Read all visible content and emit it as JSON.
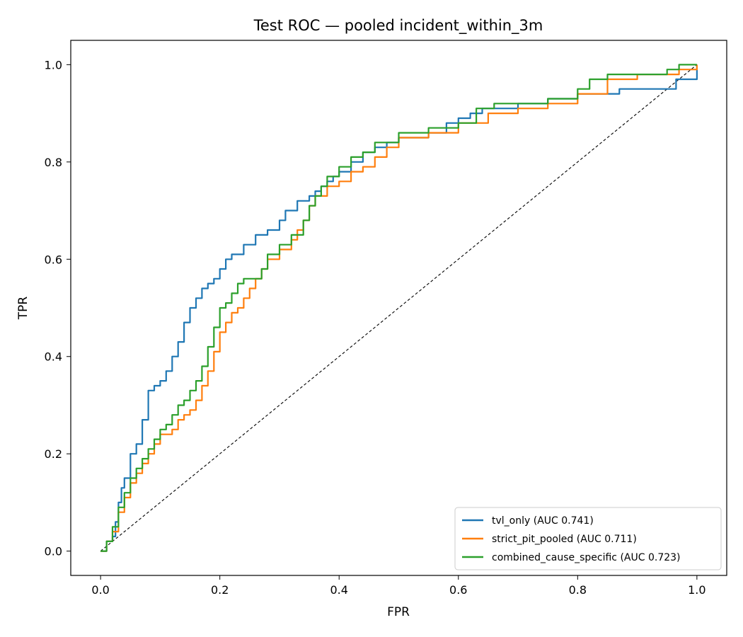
{
  "chart_data": {
    "type": "line",
    "title": "Test ROC — pooled incident_within_3m",
    "xlabel": "FPR",
    "ylabel": "TPR",
    "xlim": [
      -0.05,
      1.05
    ],
    "ylim": [
      -0.05,
      1.05
    ],
    "xticks": [
      "0.0",
      "0.2",
      "0.4",
      "0.6",
      "0.8",
      "1.0"
    ],
    "yticks": [
      "0.0",
      "0.2",
      "0.4",
      "0.6",
      "0.8",
      "1.0"
    ],
    "grid": false,
    "legend_position": "lower-right",
    "diagonal": {
      "x": [
        0,
        1
      ],
      "y": [
        0,
        1
      ],
      "style": "dashed",
      "color": "#000000"
    },
    "series": [
      {
        "name": "tvl_only (AUC 0.741)",
        "color": "#1f77b4",
        "x": [
          0,
          0.01,
          0.02,
          0.025,
          0.03,
          0.035,
          0.04,
          0.05,
          0.06,
          0.07,
          0.08,
          0.09,
          0.1,
          0.11,
          0.12,
          0.13,
          0.14,
          0.15,
          0.16,
          0.17,
          0.18,
          0.19,
          0.2,
          0.21,
          0.22,
          0.24,
          0.26,
          0.28,
          0.3,
          0.31,
          0.32,
          0.33,
          0.34,
          0.35,
          0.36,
          0.37,
          0.38,
          0.39,
          0.4,
          0.42,
          0.44,
          0.46,
          0.48,
          0.5,
          0.52,
          0.55,
          0.58,
          0.6,
          0.62,
          0.64,
          0.66,
          0.7,
          0.75,
          0.8,
          0.82,
          0.85,
          0.87,
          0.9,
          0.95,
          0.965,
          1.0
        ],
        "y": [
          0,
          0.02,
          0.03,
          0.06,
          0.1,
          0.13,
          0.15,
          0.2,
          0.22,
          0.27,
          0.33,
          0.34,
          0.35,
          0.37,
          0.4,
          0.43,
          0.47,
          0.5,
          0.52,
          0.54,
          0.55,
          0.56,
          0.58,
          0.6,
          0.61,
          0.63,
          0.65,
          0.66,
          0.68,
          0.7,
          0.7,
          0.72,
          0.72,
          0.73,
          0.74,
          0.75,
          0.76,
          0.77,
          0.78,
          0.8,
          0.82,
          0.83,
          0.84,
          0.85,
          0.85,
          0.86,
          0.88,
          0.89,
          0.9,
          0.91,
          0.91,
          0.92,
          0.93,
          0.94,
          0.94,
          0.94,
          0.95,
          0.95,
          0.95,
          0.97,
          1.0
        ]
      },
      {
        "name": "strict_pit_pooled (AUC 0.711)",
        "color": "#ff7f0e",
        "x": [
          0,
          0.01,
          0.02,
          0.03,
          0.04,
          0.05,
          0.06,
          0.07,
          0.08,
          0.09,
          0.1,
          0.12,
          0.13,
          0.14,
          0.15,
          0.16,
          0.17,
          0.18,
          0.19,
          0.2,
          0.21,
          0.22,
          0.23,
          0.24,
          0.25,
          0.26,
          0.27,
          0.28,
          0.3,
          0.32,
          0.33,
          0.34,
          0.35,
          0.36,
          0.38,
          0.4,
          0.42,
          0.44,
          0.46,
          0.48,
          0.5,
          0.55,
          0.6,
          0.63,
          0.65,
          0.7,
          0.75,
          0.8,
          0.85,
          0.9,
          0.95,
          0.97,
          1.0
        ],
        "y": [
          0,
          0.02,
          0.04,
          0.08,
          0.11,
          0.14,
          0.16,
          0.18,
          0.2,
          0.22,
          0.24,
          0.25,
          0.27,
          0.28,
          0.29,
          0.31,
          0.34,
          0.37,
          0.41,
          0.45,
          0.47,
          0.49,
          0.5,
          0.52,
          0.54,
          0.56,
          0.58,
          0.6,
          0.62,
          0.64,
          0.66,
          0.68,
          0.71,
          0.73,
          0.75,
          0.76,
          0.78,
          0.79,
          0.81,
          0.83,
          0.85,
          0.86,
          0.88,
          0.88,
          0.9,
          0.91,
          0.92,
          0.94,
          0.97,
          0.98,
          0.98,
          0.99,
          1.0
        ]
      },
      {
        "name": "combined_cause_specific (AUC 0.723)",
        "color": "#2ca02c",
        "x": [
          0,
          0.01,
          0.02,
          0.03,
          0.04,
          0.05,
          0.06,
          0.07,
          0.08,
          0.09,
          0.1,
          0.11,
          0.12,
          0.13,
          0.14,
          0.15,
          0.16,
          0.17,
          0.18,
          0.19,
          0.2,
          0.21,
          0.22,
          0.23,
          0.24,
          0.25,
          0.27,
          0.28,
          0.3,
          0.32,
          0.34,
          0.35,
          0.36,
          0.37,
          0.38,
          0.4,
          0.42,
          0.44,
          0.46,
          0.5,
          0.55,
          0.6,
          0.63,
          0.66,
          0.7,
          0.75,
          0.8,
          0.82,
          0.85,
          0.9,
          0.95,
          0.97,
          1.0
        ],
        "y": [
          0,
          0.02,
          0.05,
          0.09,
          0.12,
          0.15,
          0.17,
          0.19,
          0.21,
          0.23,
          0.25,
          0.26,
          0.28,
          0.3,
          0.31,
          0.33,
          0.35,
          0.38,
          0.42,
          0.46,
          0.5,
          0.51,
          0.53,
          0.55,
          0.56,
          0.56,
          0.58,
          0.61,
          0.63,
          0.65,
          0.68,
          0.71,
          0.73,
          0.75,
          0.77,
          0.79,
          0.81,
          0.82,
          0.84,
          0.86,
          0.87,
          0.88,
          0.91,
          0.92,
          0.92,
          0.93,
          0.95,
          0.97,
          0.98,
          0.98,
          0.99,
          1.0,
          1.0
        ]
      }
    ]
  }
}
